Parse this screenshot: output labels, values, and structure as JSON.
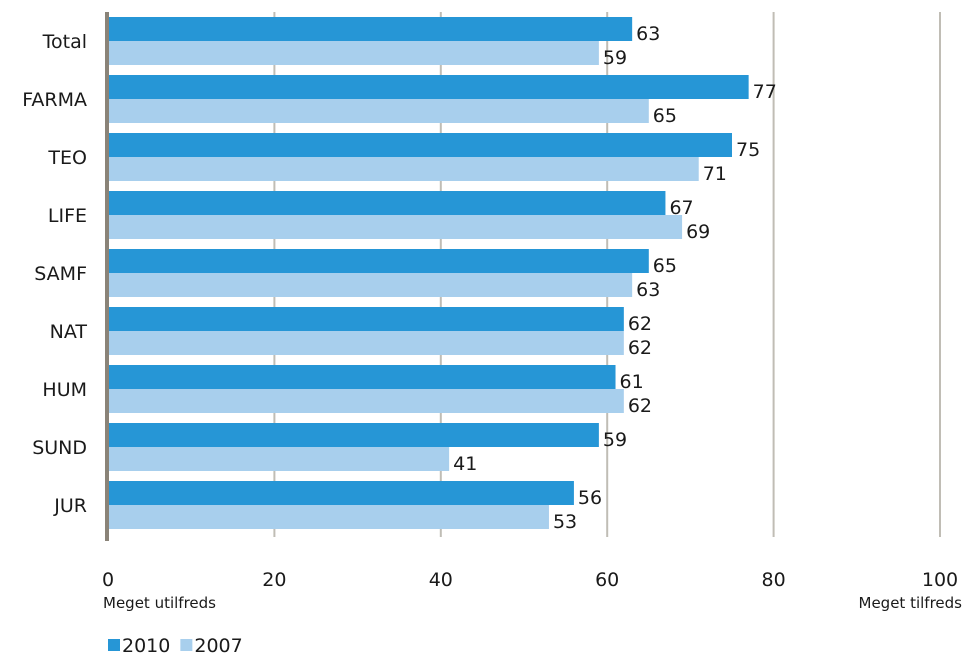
{
  "chart_data": {
    "type": "bar",
    "orientation": "horizontal",
    "categories": [
      "Total",
      "FARMA",
      "TEO",
      "LIFE",
      "SAMF",
      "NAT",
      "HUM",
      "SUND",
      "JUR"
    ],
    "series": [
      {
        "name": "2010",
        "color": "#2696d6",
        "values": [
          63,
          77,
          75,
          67,
          65,
          62,
          61,
          59,
          56
        ]
      },
      {
        "name": "2007",
        "color": "#a8cfed",
        "values": [
          59,
          65,
          71,
          69,
          63,
          62,
          62,
          41,
          53
        ]
      }
    ],
    "xlim": [
      0,
      100
    ],
    "xticks": [
      0,
      20,
      40,
      60,
      80,
      100
    ],
    "x_min_label": "Meget utilfreds",
    "x_max_label": "Meget tilfreds",
    "grid": true,
    "legend_position": "bottom-left",
    "colors": {
      "grid": "#c0bdb5",
      "axis": "#8a8378"
    }
  }
}
